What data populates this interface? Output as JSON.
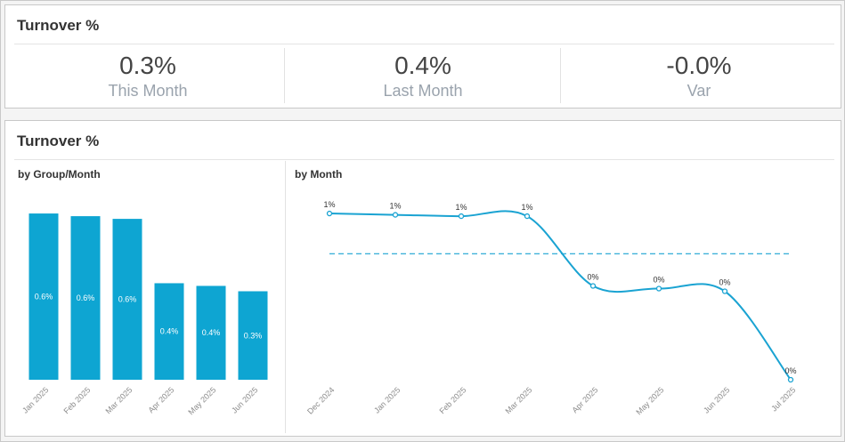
{
  "kpi_panel": {
    "title": "Turnover %",
    "kpis": [
      {
        "value": "0.3%",
        "label": "This Month"
      },
      {
        "value": "0.4%",
        "label": "Last Month"
      },
      {
        "value": "-0.0%",
        "label": "Var"
      }
    ]
  },
  "chart_panel": {
    "title": "Turnover %"
  },
  "chart_data": [
    {
      "type": "bar",
      "subtitle": "by Group/Month",
      "categories": [
        "Jan 2025",
        "Feb 2025",
        "Mar 2025",
        "Apr 2025",
        "May 2025",
        "Jun 2025"
      ],
      "values": [
        0.62,
        0.61,
        0.6,
        0.36,
        0.35,
        0.33
      ],
      "data_labels": [
        "0.6%",
        "0.6%",
        "0.6%",
        "0.4%",
        "0.4%",
        "0.3%"
      ],
      "ylim": [
        0,
        0.66
      ],
      "color": "#0ea5d2"
    },
    {
      "type": "line",
      "subtitle": "by Month",
      "categories": [
        "Dec 2024",
        "Jan 2025",
        "Feb 2025",
        "Mar 2025",
        "Apr 2025",
        "May 2025",
        "Jun 2025",
        "Jul 2025"
      ],
      "values": [
        0.62,
        0.615,
        0.61,
        0.61,
        0.35,
        0.34,
        0.33,
        0.0
      ],
      "data_labels": [
        "1%",
        "1%",
        "1%",
        "1%",
        "0%",
        "0%",
        "0%",
        "0%"
      ],
      "average": 0.47,
      "ylim": [
        0,
        0.66
      ],
      "color": "#1aa3d2"
    }
  ]
}
